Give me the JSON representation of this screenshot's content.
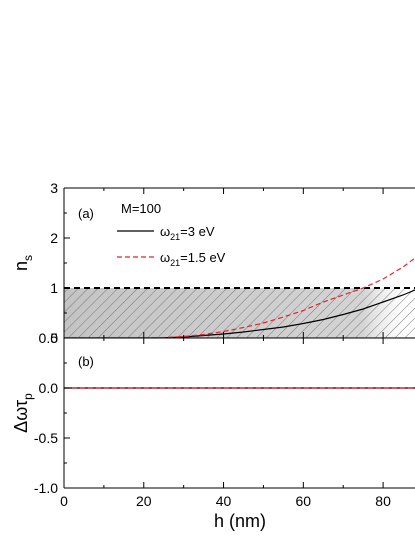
{
  "chart_data": [
    {
      "panel": "(a)",
      "type": "line",
      "xlim": [
        0,
        88
      ],
      "ylim": [
        0,
        3
      ],
      "xticks": [
        0,
        20,
        40,
        60,
        80
      ],
      "yticks": [
        0,
        1,
        2,
        3
      ],
      "ylabel": {
        "base": "n",
        "sub": "s"
      },
      "xlabel": "h (nm)",
      "annotation": "M=100",
      "shaded_region": {
        "y_from": 0,
        "y_to": 1,
        "pattern": "diagonal hatch",
        "gradient_x_to": 75
      },
      "reference_lines": [
        {
          "y": 1,
          "style": "dashed",
          "color": "#000000"
        },
        {
          "y": 0,
          "style": "solid",
          "color": "#888888"
        }
      ],
      "legend": {
        "placement": "top-left"
      },
      "series": [
        {
          "name_base": "ω",
          "name_sub": "21",
          "name_rest": "=3 eV",
          "color": "#000000",
          "style": "solid",
          "x": [
            0,
            15,
            20,
            25,
            30,
            35,
            40,
            45,
            50,
            55,
            60,
            65,
            70,
            75,
            80,
            85,
            88
          ],
          "y": [
            0,
            0,
            0,
            0.005,
            0.02,
            0.05,
            0.08,
            0.12,
            0.17,
            0.22,
            0.29,
            0.37,
            0.47,
            0.58,
            0.72,
            0.86,
            0.96
          ]
        },
        {
          "name_base": "ω",
          "name_sub": "21",
          "name_rest": "=1.5 eV",
          "color": "#e8212b",
          "style": "dashed",
          "x": [
            0,
            15,
            20,
            25,
            30,
            35,
            40,
            45,
            50,
            55,
            60,
            65,
            70,
            75,
            80,
            85,
            88
          ],
          "y": [
            0,
            0,
            0,
            0.008,
            0.03,
            0.07,
            0.13,
            0.21,
            0.3,
            0.42,
            0.55,
            0.72,
            0.86,
            1.0,
            1.18,
            1.42,
            1.6
          ]
        }
      ]
    },
    {
      "panel": "(b)",
      "type": "line",
      "xlim": [
        0,
        88
      ],
      "ylim": [
        -1.0,
        0.5
      ],
      "xticks": [
        0,
        20,
        40,
        60,
        80
      ],
      "yticks": [
        -1.0,
        -0.5,
        0.0,
        0.5
      ],
      "ytick_labels": [
        "-1.0",
        "-0.5",
        "0.0",
        "0.5"
      ],
      "ylabel": {
        "base": "Δωτ",
        "sub": "p"
      },
      "xlabel": "h (nm)",
      "series": [
        {
          "color": "#000000",
          "style": "solid",
          "x": [
            0,
            88
          ],
          "y": [
            0.0,
            0.0
          ]
        },
        {
          "color": "#e8212b",
          "style": "dashed",
          "x": [
            0,
            88
          ],
          "y": [
            0.0,
            0.0
          ]
        }
      ]
    }
  ]
}
